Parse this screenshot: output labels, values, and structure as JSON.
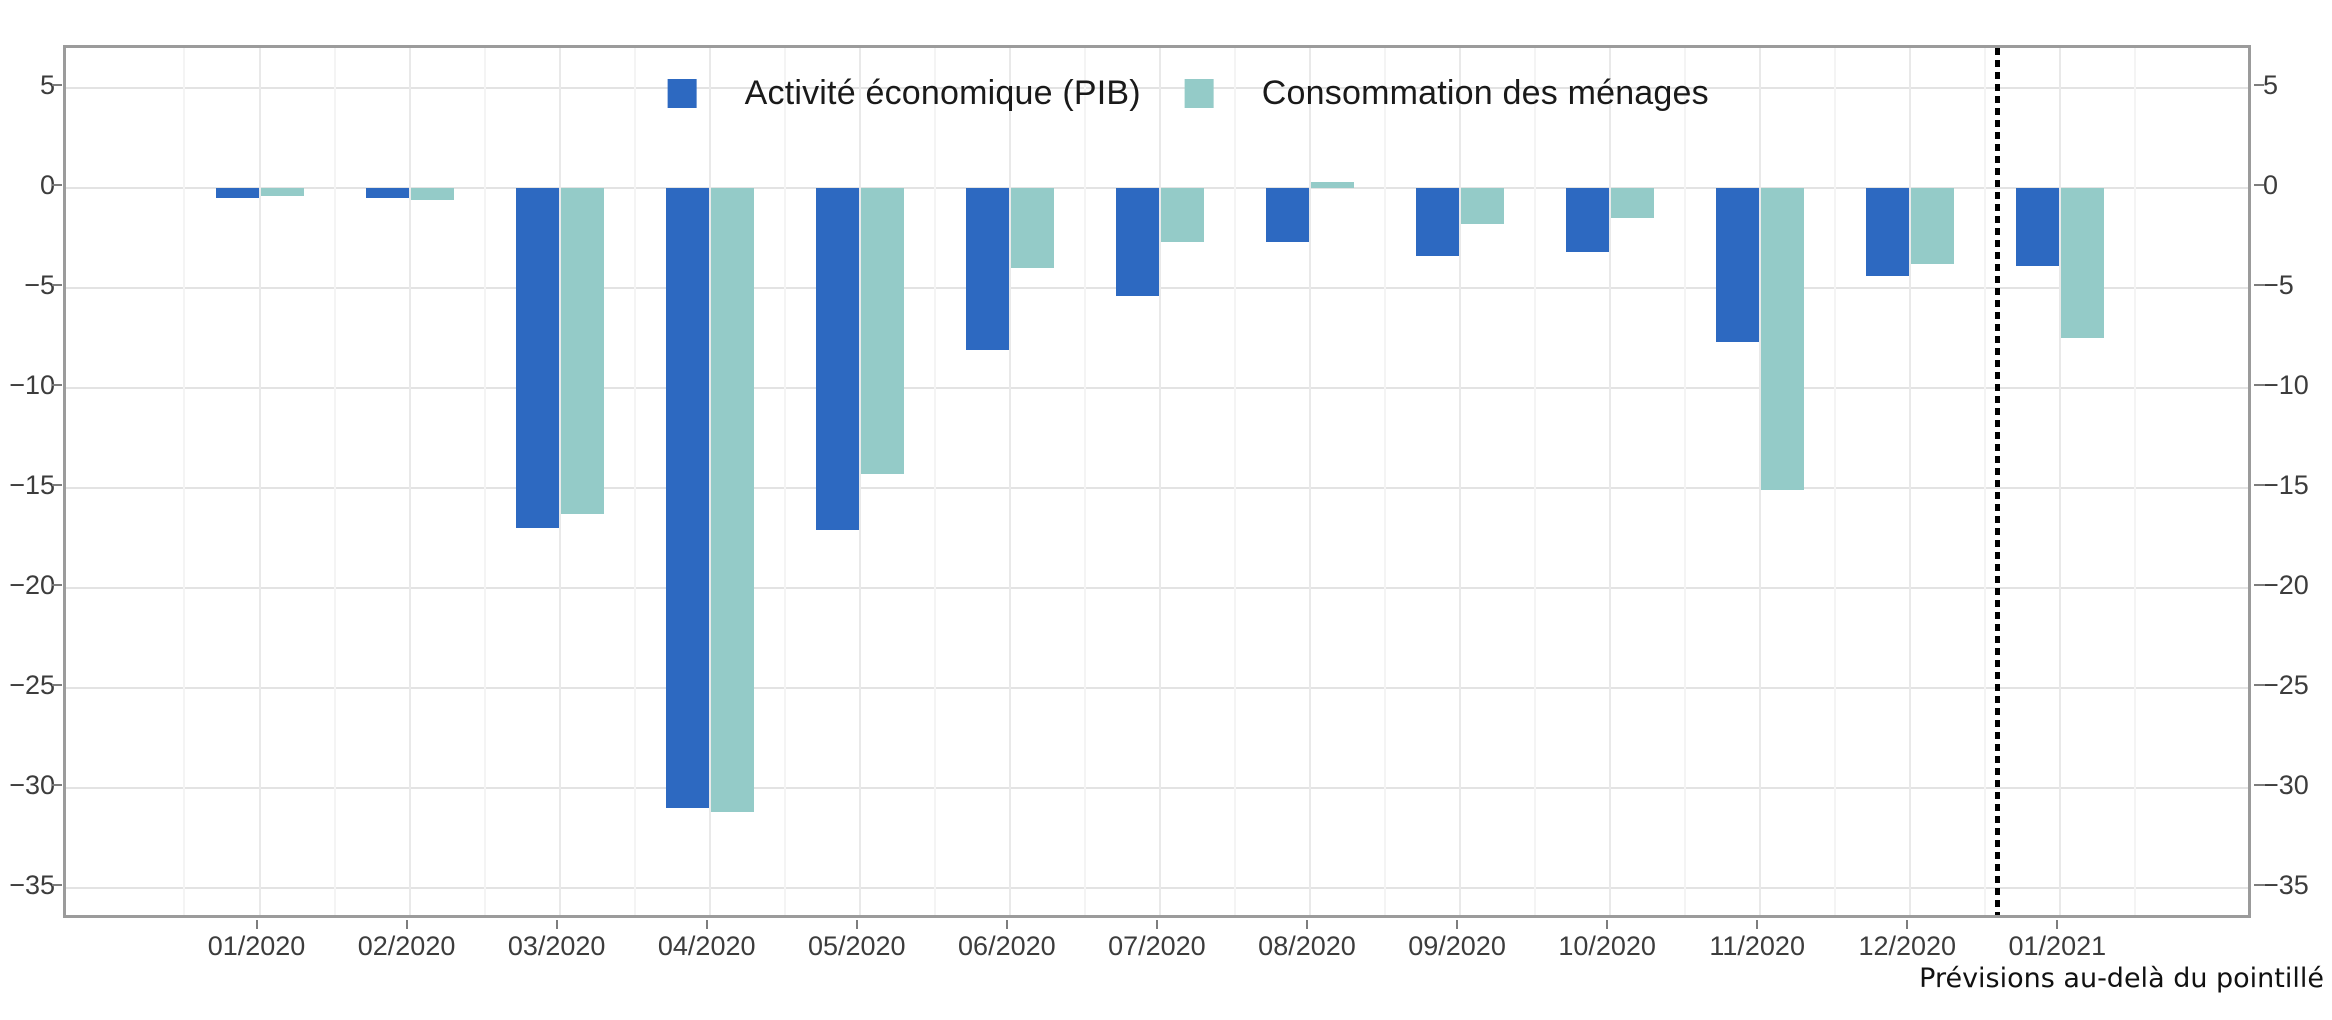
{
  "chart_data": {
    "type": "bar",
    "title": "",
    "xlabel": "",
    "ylabel": "",
    "categories": [
      "01/2020",
      "02/2020",
      "03/2020",
      "04/2020",
      "05/2020",
      "06/2020",
      "07/2020",
      "08/2020",
      "09/2020",
      "10/2020",
      "11/2020",
      "12/2020",
      "01/2021"
    ],
    "series": [
      {
        "name": "Activité économique (PIB)",
        "color": "#2d69c1",
        "values": [
          -0.5,
          -0.5,
          -17.0,
          -31.0,
          -17.1,
          -8.1,
          -5.4,
          -2.7,
          -3.4,
          -3.2,
          -7.7,
          -4.4,
          -3.9
        ]
      },
      {
        "name": "Consommation des ménages",
        "color": "#94cbc8",
        "values": [
          -0.4,
          -0.6,
          -16.3,
          -31.2,
          -14.3,
          -4.0,
          -2.7,
          0.3,
          -1.8,
          -1.5,
          -15.1,
          -3.8,
          -7.5
        ]
      }
    ],
    "ylim": [
      -36.6,
      7.0
    ],
    "yticks": [
      5,
      0,
      -5,
      -10,
      -15,
      -20,
      -25,
      -30,
      -35
    ],
    "dual_y_axis": true,
    "grid": "light gray major horizontal + vertical, minor vertical",
    "legend_position": "top-center inside plot",
    "forecast_divider_after": "12/2020",
    "annotation": "Prévisions au-delà du pointillé"
  },
  "legend": {
    "items": [
      {
        "label": "Activité économique (PIB)",
        "color": "#2d69c1"
      },
      {
        "label": "Consommation des ménages",
        "color": "#94cbc8"
      }
    ]
  },
  "caption": "Prévisions au-delà du pointillé"
}
